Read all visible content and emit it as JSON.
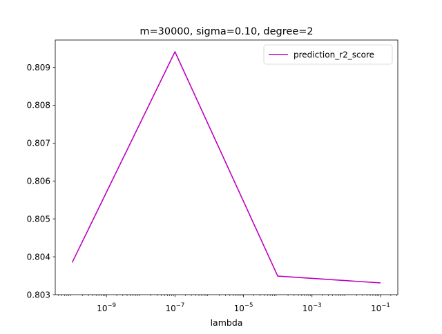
{
  "chart_data": {
    "type": "line",
    "title": "m=30000, sigma=0.10, degree=2",
    "xlabel": "lambda",
    "ylabel": "",
    "x_scale": "log",
    "xlim": [
      3.2e-11,
      0.32
    ],
    "ylim": [
      0.803,
      0.80972
    ],
    "x_ticks": [
      {
        "value": 1e-09,
        "base": "10",
        "exponent": "−9"
      },
      {
        "value": 1e-07,
        "base": "10",
        "exponent": "−7"
      },
      {
        "value": 1e-05,
        "base": "10",
        "exponent": "−5"
      },
      {
        "value": 0.001,
        "base": "10",
        "exponent": "−3"
      },
      {
        "value": 0.1,
        "base": "10",
        "exponent": "−1"
      }
    ],
    "y_ticks": [
      {
        "value": 0.803,
        "label": "0.803"
      },
      {
        "value": 0.804,
        "label": "0.804"
      },
      {
        "value": 0.805,
        "label": "0.805"
      },
      {
        "value": 0.806,
        "label": "0.806"
      },
      {
        "value": 0.807,
        "label": "0.807"
      },
      {
        "value": 0.808,
        "label": "0.808"
      },
      {
        "value": 0.809,
        "label": "0.809"
      }
    ],
    "series": [
      {
        "name": "prediction_r2_score",
        "color": "#bf00bf",
        "x": [
          1e-10,
          1e-07,
          0.0001,
          0.1
        ],
        "y": [
          0.80385,
          0.80941,
          0.80349,
          0.80331
        ]
      }
    ],
    "legend": {
      "placement": "top-right"
    },
    "grid": false
  }
}
